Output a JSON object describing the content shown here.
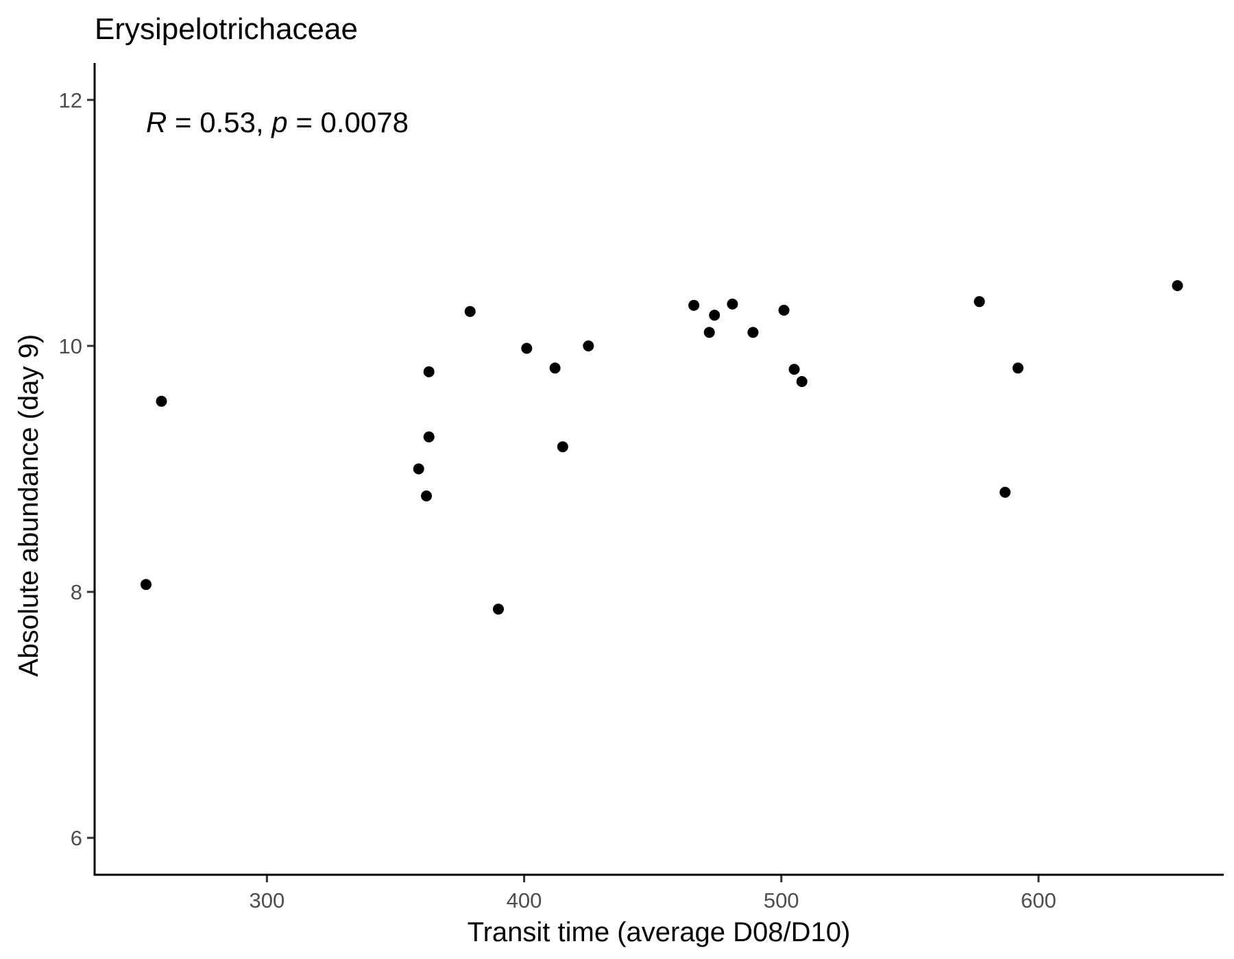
{
  "chart_data": {
    "type": "scatter",
    "title": "Erysipelotrichaceae",
    "xlabel": "Transit time (average D08/D10)",
    "ylabel": "Absolute abundance (day 9)",
    "xlim": [
      233,
      672
    ],
    "ylim": [
      5.7,
      12.3
    ],
    "x_ticks": [
      300,
      400,
      500,
      600
    ],
    "y_ticks": [
      6,
      8,
      10,
      12
    ],
    "grid": false,
    "legend": "none",
    "point_color": "#000000",
    "annotation": {
      "r_symbol": "R",
      "r_text": " = 0.53, ",
      "p_symbol": "p",
      "p_text": " = 0.0078"
    },
    "points": [
      {
        "x": 253,
        "y": 8.06
      },
      {
        "x": 259,
        "y": 9.55
      },
      {
        "x": 359,
        "y": 9.0
      },
      {
        "x": 362,
        "y": 8.78
      },
      {
        "x": 363,
        "y": 9.26
      },
      {
        "x": 363,
        "y": 9.79
      },
      {
        "x": 379,
        "y": 10.28
      },
      {
        "x": 390,
        "y": 7.86
      },
      {
        "x": 401,
        "y": 9.98
      },
      {
        "x": 412,
        "y": 9.82
      },
      {
        "x": 415,
        "y": 9.18
      },
      {
        "x": 425,
        "y": 10.0
      },
      {
        "x": 466,
        "y": 10.33
      },
      {
        "x": 472,
        "y": 10.11
      },
      {
        "x": 474,
        "y": 10.25
      },
      {
        "x": 481,
        "y": 10.34
      },
      {
        "x": 489,
        "y": 10.11
      },
      {
        "x": 501,
        "y": 10.29
      },
      {
        "x": 505,
        "y": 9.81
      },
      {
        "x": 508,
        "y": 9.71
      },
      {
        "x": 577,
        "y": 10.36
      },
      {
        "x": 587,
        "y": 8.81
      },
      {
        "x": 592,
        "y": 9.82
      },
      {
        "x": 654,
        "y": 10.49
      }
    ]
  }
}
